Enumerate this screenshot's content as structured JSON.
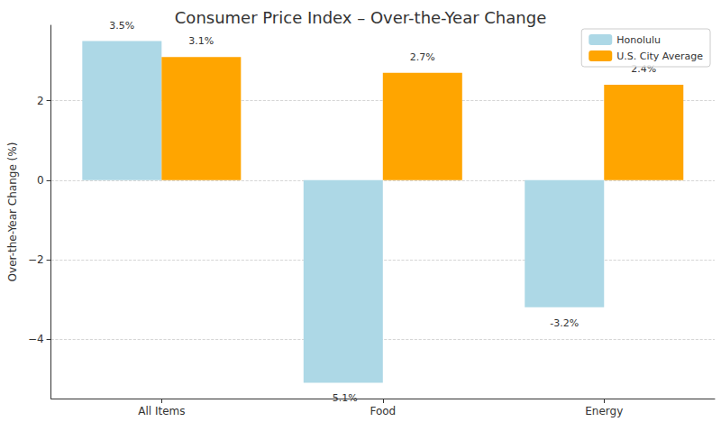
{
  "chart_data": {
    "type": "bar",
    "title": "Consumer Price Index – Over-the-Year Change",
    "y_label": "Over-the-Year Change (%)",
    "categories": [
      "All Items",
      "Food",
      "Energy"
    ],
    "series": [
      {
        "name": "Honolulu",
        "color": "#add8e6",
        "values": [
          3.5,
          -5.1,
          -3.2
        ],
        "value_labels": [
          "3.5%",
          "-5.1%",
          "-3.2%"
        ]
      },
      {
        "name": "U.S. City Average",
        "color": "#ffa500",
        "values": [
          3.1,
          2.7,
          2.4
        ],
        "value_labels": [
          "3.1%",
          "2.7%",
          "2.4%"
        ]
      }
    ],
    "ylim": [
      -5.5,
      3.9
    ],
    "yticks": [
      {
        "value": -4,
        "label": "−4"
      },
      {
        "value": -2,
        "label": "−2"
      },
      0,
      2
    ],
    "grid": true,
    "legend": "upper right",
    "data_labels": true
  }
}
